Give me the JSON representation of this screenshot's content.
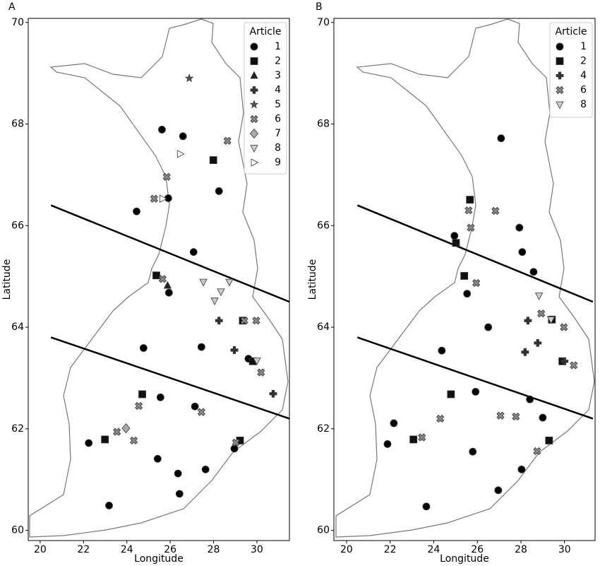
{
  "chart_data": [
    {
      "type": "scatter",
      "title": "A",
      "x_label": "Longitude",
      "y_label": "Latitude",
      "legend_title": "Article",
      "xlim": [
        19.45,
        31.5
      ],
      "ylim": [
        59.8,
        70.08
      ],
      "xticks": [
        20,
        22,
        24,
        26,
        28,
        30
      ],
      "yticks": [
        60,
        62,
        64,
        66,
        68,
        70
      ],
      "lines": [
        {
          "x": [
            20.5,
            31.5
          ],
          "y": [
            66.4,
            64.5
          ]
        },
        {
          "x": [
            20.5,
            31.5
          ],
          "y": [
            63.8,
            62.2
          ]
        }
      ],
      "series": [
        {
          "name": "1",
          "color": "#000000",
          "marker": "circle",
          "x": [
            25.62,
            26.59,
            25.91,
            24.45,
            28.25,
            27.08,
            25.94,
            24.77,
            27.44,
            29.61,
            25.55,
            27.14,
            22.24,
            28.96,
            25.42,
            26.36,
            27.63,
            26.43,
            23.18
          ],
          "values": [
            67.89,
            67.76,
            66.54,
            66.28,
            66.68,
            65.48,
            64.68,
            63.59,
            63.61,
            63.38,
            62.62,
            62.44,
            61.72,
            61.61,
            61.41,
            61.12,
            61.2,
            60.72,
            60.49
          ]
        },
        {
          "name": "2",
          "color": "#111111",
          "marker": "square",
          "x": [
            27.99,
            25.36,
            29.35,
            29.81,
            24.71,
            22.99,
            29.22
          ],
          "values": [
            67.29,
            65.02,
            64.13,
            63.33,
            62.68,
            61.79,
            61.77
          ]
        },
        {
          "name": "3",
          "color": "#222222",
          "marker": "triangle",
          "x": [
            25.88
          ],
          "values": [
            64.82
          ]
        },
        {
          "name": "4",
          "color": "#333333",
          "marker": "plus",
          "x": [
            28.25,
            28.96,
            30.75
          ],
          "values": [
            64.13,
            63.55,
            62.69
          ]
        },
        {
          "name": "5",
          "color": "#555555",
          "marker": "star",
          "x": [
            26.88
          ],
          "values": [
            68.9
          ]
        },
        {
          "name": "6",
          "color": "#888888",
          "marker": "x",
          "x": [
            28.64,
            25.84,
            25.26,
            25.65,
            29.42,
            29.97,
            30.19,
            24.55,
            27.44,
            23.54,
            24.32,
            29.03
          ],
          "values": [
            67.67,
            66.96,
            66.53,
            64.95,
            64.13,
            64.13,
            63.11,
            62.45,
            62.33,
            61.94,
            61.77,
            61.73
          ]
        },
        {
          "name": "7",
          "color": "#aaaaaa",
          "marker": "diamond",
          "x": [
            23.96
          ],
          "values": [
            62.01
          ]
        },
        {
          "name": "8",
          "color": "#cccccc",
          "marker": "triangle-down",
          "x": [
            27.53,
            28.34,
            28.05,
            28.73,
            30.0
          ],
          "values": [
            64.89,
            64.7,
            64.52,
            64.89,
            63.34
          ]
        },
        {
          "name": "9",
          "color": "#ffffff",
          "marker": "triangle-right",
          "x": [
            26.46,
            25.65
          ],
          "values": [
            67.41,
            66.53
          ]
        }
      ]
    },
    {
      "type": "scatter",
      "title": "B",
      "x_label": "Longitude",
      "y_label": "Latitude",
      "legend_title": "Article",
      "xlim": [
        19.42,
        31.4
      ],
      "ylim": [
        59.8,
        70.08
      ],
      "xticks": [
        20,
        22,
        24,
        26,
        28,
        30
      ],
      "yticks": [
        60,
        62,
        64,
        66,
        68,
        70
      ],
      "lines": [
        {
          "x": [
            20.5,
            31.3
          ],
          "y": [
            66.4,
            64.5
          ]
        },
        {
          "x": [
            20.5,
            31.3
          ],
          "y": [
            63.8,
            62.2
          ]
        }
      ],
      "series": [
        {
          "name": "1",
          "color": "#000000",
          "marker": "circle",
          "x": [
            27.09,
            24.95,
            27.93,
            28.06,
            28.58,
            25.53,
            26.5,
            24.37,
            25.92,
            28.41,
            29.0,
            22.17,
            21.88,
            25.79,
            28.03,
            26.96,
            23.66
          ],
          "values": [
            67.72,
            65.8,
            65.96,
            65.48,
            65.09,
            64.66,
            64.0,
            63.54,
            62.73,
            62.58,
            62.22,
            62.11,
            61.7,
            61.55,
            61.2,
            60.79,
            60.47
          ]
        },
        {
          "name": "2",
          "color": "#111111",
          "marker": "square",
          "x": [
            25.66,
            25.02,
            25.4,
            29.42,
            29.9,
            24.79,
            23.07,
            29.29
          ],
          "values": [
            66.51,
            65.66,
            65.01,
            64.15,
            63.33,
            62.68,
            61.79,
            61.77
          ]
        },
        {
          "name": "4",
          "color": "#333333",
          "marker": "plus",
          "x": [
            28.32,
            28.77,
            28.19,
            30.0
          ],
          "values": [
            64.13,
            63.69,
            63.51,
            63.33
          ]
        },
        {
          "name": "6",
          "color": "#888888",
          "marker": "x",
          "x": [
            25.6,
            26.83,
            25.7,
            25.95,
            28.93,
            29.97,
            30.42,
            24.3,
            23.46,
            27.06,
            27.77,
            28.74
          ],
          "values": [
            66.3,
            66.29,
            65.96,
            64.87,
            64.27,
            64.0,
            63.25,
            62.2,
            61.83,
            62.26,
            62.24,
            61.56
          ]
        },
        {
          "name": "8",
          "color": "#cccccc",
          "marker": "triangle-down",
          "x": [
            28.83,
            29.38
          ],
          "values": [
            64.62,
            64.15
          ]
        }
      ]
    }
  ]
}
